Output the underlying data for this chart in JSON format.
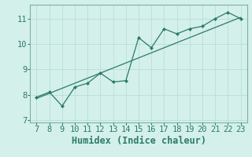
{
  "title": "",
  "xlabel": "Humidex (Indice chaleur)",
  "bg_color": "#d4f0eb",
  "line_color": "#2d7a6a",
  "grid_color": "#b8ddd8",
  "spine_color": "#7ab0a8",
  "scatter_x": [
    7,
    8,
    9,
    10,
    11,
    12,
    13,
    14,
    15,
    16,
    17,
    18,
    19,
    20,
    21,
    22,
    23
  ],
  "scatter_y": [
    7.9,
    8.1,
    7.55,
    8.3,
    8.45,
    8.85,
    8.5,
    8.55,
    10.25,
    9.85,
    10.6,
    10.4,
    10.6,
    10.7,
    11.0,
    11.25,
    11.0
  ],
  "trend_x": [
    7,
    23
  ],
  "trend_y": [
    7.85,
    11.05
  ],
  "xlim": [
    6.5,
    23.5
  ],
  "ylim": [
    6.9,
    11.55
  ],
  "xticks": [
    7,
    8,
    9,
    10,
    11,
    12,
    13,
    14,
    15,
    16,
    17,
    18,
    19,
    20,
    21,
    22,
    23
  ],
  "yticks": [
    7,
    8,
    9,
    10,
    11
  ],
  "tick_fontsize": 7.5,
  "label_fontsize": 8.5
}
